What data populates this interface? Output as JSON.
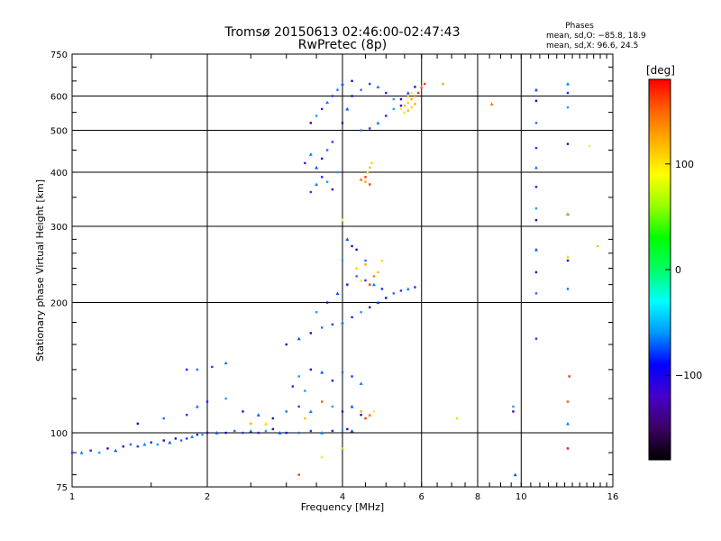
{
  "chart_data": {
    "type": "scatter",
    "title": "Tromsø 20150613 02:46:00-02:47:43",
    "subtitle": "RwPretec (8p)",
    "xlabel": "Frequency [MHz]",
    "ylabel": "Stationary phase Virtual Height [km]",
    "xscale": "log",
    "yscale": "log",
    "xlim": [
      1,
      16
    ],
    "ylim": [
      75,
      750
    ],
    "xticks": [
      1,
      2,
      4,
      6,
      8,
      10,
      16
    ],
    "xtick_labels": [
      "1",
      "2",
      "4",
      "6",
      "8",
      "10",
      "16"
    ],
    "yticks": [
      75,
      100,
      200,
      300,
      400,
      500,
      600,
      750
    ],
    "ytick_labels": [
      "75",
      "100",
      "200",
      "300",
      "400",
      "500",
      "600",
      "750"
    ],
    "grid": true,
    "stats": {
      "title": "Phases",
      "line_o": "mean, sd,O: −85.8, 18.9",
      "line_x": "mean, sd,X:  96.6, 24.5"
    },
    "colorbar": {
      "label": "[deg]",
      "range": [
        -180,
        180
      ],
      "ticks": [
        100,
        0,
        -100
      ],
      "tick_labels": [
        "100",
        "0",
        "−100"
      ],
      "colors": [
        "#000000",
        "#3c0064",
        "#4600c8",
        "#0000ff",
        "#0096ff",
        "#00ffff",
        "#00ff64",
        "#00ff00",
        "#96ff00",
        "#ffff00",
        "#ffb400",
        "#ff6400",
        "#ff0000"
      ]
    },
    "series": [
      {
        "values": [
          [
            1.0,
            90
          ],
          [
            1.05,
            90
          ],
          [
            1.1,
            91
          ],
          [
            1.15,
            90
          ],
          [
            1.2,
            92
          ],
          [
            1.25,
            91
          ],
          [
            1.3,
            93
          ],
          [
            1.35,
            94
          ],
          [
            1.4,
            93
          ],
          [
            1.45,
            94
          ],
          [
            1.5,
            95
          ],
          [
            1.55,
            94
          ],
          [
            1.6,
            96
          ],
          [
            1.65,
            95
          ],
          [
            1.7,
            97
          ],
          [
            1.75,
            96
          ],
          [
            1.8,
            97
          ],
          [
            1.85,
            98
          ],
          [
            1.9,
            99
          ],
          [
            1.95,
            99
          ],
          [
            2.0,
            100
          ],
          [
            2.1,
            100
          ],
          [
            2.2,
            100
          ],
          [
            2.3,
            101
          ],
          [
            2.4,
            100
          ],
          [
            2.5,
            101
          ],
          [
            2.6,
            100
          ],
          [
            2.7,
            101
          ],
          [
            2.8,
            102
          ],
          [
            2.9,
            100
          ],
          [
            3.0,
            100
          ],
          [
            3.2,
            100
          ],
          [
            3.4,
            101
          ],
          [
            3.6,
            100
          ],
          [
            3.8,
            101
          ],
          [
            4.0,
            101
          ],
          [
            4.1,
            102
          ],
          [
            4.2,
            101
          ],
          [
            1.4,
            105
          ],
          [
            1.6,
            108
          ],
          [
            1.8,
            110
          ],
          [
            1.9,
            115
          ],
          [
            2.0,
            118
          ],
          [
            2.2,
            120
          ],
          [
            2.4,
            112
          ],
          [
            2.6,
            110
          ],
          [
            2.8,
            108
          ],
          [
            3.0,
            112
          ],
          [
            3.2,
            115
          ],
          [
            3.4,
            112
          ],
          [
            3.6,
            118
          ],
          [
            3.8,
            115
          ],
          [
            4.0,
            112
          ],
          [
            4.2,
            115
          ],
          [
            4.4,
            110
          ],
          [
            1.9,
            140
          ],
          [
            2.05,
            142
          ],
          [
            2.2,
            145
          ],
          [
            1.8,
            140
          ],
          [
            3.2,
            135
          ],
          [
            3.4,
            140
          ],
          [
            3.6,
            138
          ],
          [
            3.8,
            132
          ],
          [
            4.0,
            138
          ],
          [
            4.2,
            135
          ],
          [
            4.4,
            130
          ],
          [
            3.1,
            128
          ],
          [
            3.3,
            125
          ],
          [
            3.0,
            160
          ],
          [
            3.2,
            165
          ],
          [
            3.4,
            170
          ],
          [
            3.6,
            175
          ],
          [
            3.8,
            178
          ],
          [
            4.0,
            180
          ],
          [
            4.2,
            185
          ],
          [
            4.4,
            190
          ],
          [
            4.6,
            195
          ],
          [
            4.8,
            200
          ],
          [
            5.0,
            205
          ],
          [
            5.2,
            210
          ],
          [
            5.4,
            213
          ],
          [
            5.6,
            215
          ],
          [
            5.8,
            217
          ],
          [
            3.5,
            190
          ],
          [
            3.7,
            200
          ],
          [
            3.9,
            210
          ],
          [
            4.1,
            220
          ],
          [
            4.3,
            230
          ],
          [
            4.5,
            225
          ],
          [
            4.7,
            220
          ],
          [
            4.9,
            215
          ],
          [
            4.0,
            250
          ],
          [
            4.2,
            270
          ],
          [
            4.1,
            280
          ],
          [
            4.3,
            265
          ],
          [
            4.5,
            250
          ],
          [
            3.4,
            360
          ],
          [
            3.5,
            375
          ],
          [
            3.6,
            390
          ],
          [
            3.7,
            380
          ],
          [
            3.8,
            365
          ],
          [
            3.5,
            410
          ],
          [
            3.6,
            430
          ],
          [
            3.7,
            450
          ],
          [
            3.8,
            470
          ],
          [
            3.4,
            440
          ],
          [
            3.3,
            420
          ],
          [
            3.9,
            400
          ],
          [
            4.0,
            520
          ],
          [
            4.1,
            560
          ],
          [
            4.2,
            600
          ],
          [
            4.4,
            620
          ],
          [
            4.6,
            640
          ],
          [
            4.8,
            630
          ],
          [
            5.0,
            610
          ],
          [
            5.2,
            590
          ],
          [
            5.4,
            570
          ],
          [
            4.0,
            640
          ],
          [
            4.2,
            650
          ],
          [
            4.4,
            500
          ],
          [
            4.6,
            505
          ],
          [
            4.8,
            520
          ],
          [
            5.0,
            540
          ],
          [
            5.2,
            560
          ],
          [
            5.4,
            590
          ],
          [
            5.6,
            610
          ],
          [
            5.8,
            630
          ],
          [
            3.9,
            620
          ],
          [
            3.8,
            600
          ],
          [
            3.7,
            580
          ],
          [
            3.6,
            560
          ],
          [
            3.5,
            540
          ],
          [
            3.4,
            520
          ],
          [
            10.8,
            620
          ],
          [
            10.8,
            585
          ],
          [
            10.8,
            520
          ],
          [
            10.8,
            455
          ],
          [
            10.8,
            410
          ],
          [
            10.8,
            370
          ],
          [
            10.8,
            330
          ],
          [
            10.8,
            310
          ],
          [
            10.8,
            265
          ],
          [
            10.8,
            235
          ],
          [
            10.8,
            210
          ],
          [
            10.8,
            165
          ],
          [
            12.7,
            640
          ],
          [
            12.7,
            610
          ],
          [
            12.7,
            565
          ],
          [
            12.7,
            465
          ],
          [
            12.7,
            320
          ],
          [
            12.7,
            250
          ],
          [
            12.7,
            215
          ],
          [
            12.7,
            118
          ],
          [
            12.7,
            105
          ],
          [
            12.7,
            92
          ],
          [
            9.6,
            115
          ],
          [
            9.6,
            112
          ],
          [
            9.7,
            80
          ]
        ]
      },
      {
        "values": [
          [
            4.5,
            390
          ],
          [
            4.55,
            400
          ],
          [
            4.6,
            410
          ],
          [
            4.65,
            420
          ],
          [
            4.5,
            380
          ],
          [
            4.4,
            385
          ],
          [
            4.6,
            375
          ],
          [
            5.4,
            560
          ],
          [
            5.5,
            570
          ],
          [
            5.6,
            580
          ],
          [
            5.7,
            590
          ],
          [
            5.8,
            600
          ],
          [
            5.9,
            610
          ],
          [
            5.5,
            550
          ],
          [
            5.6,
            555
          ],
          [
            5.7,
            565
          ],
          [
            5.8,
            575
          ],
          [
            6.0,
            630
          ],
          [
            6.1,
            640
          ],
          [
            5.7,
            610
          ],
          [
            5.6,
            600
          ],
          [
            4.3,
            240
          ],
          [
            4.5,
            245
          ],
          [
            4.7,
            230
          ],
          [
            4.6,
            220
          ],
          [
            4.4,
            225
          ],
          [
            4.8,
            235
          ],
          [
            4.9,
            250
          ],
          [
            4.4,
            112
          ],
          [
            4.6,
            110
          ],
          [
            4.5,
            108
          ],
          [
            4.7,
            112
          ],
          [
            3.3,
            108
          ],
          [
            2.7,
            105
          ],
          [
            2.5,
            105
          ],
          [
            3.6,
            118
          ],
          [
            3.2,
            80
          ],
          [
            3.6,
            88
          ],
          [
            4.0,
            92
          ],
          [
            7.2,
            108
          ],
          [
            6.7,
            640
          ],
          [
            8.6,
            575
          ],
          [
            12.8,
            135
          ],
          [
            14.2,
            460
          ],
          [
            14.8,
            270
          ],
          [
            12.7,
            255
          ],
          [
            12.7,
            320
          ],
          [
            12.7,
            118
          ],
          [
            12.7,
            92
          ],
          [
            4.0,
            310
          ]
        ]
      }
    ]
  }
}
